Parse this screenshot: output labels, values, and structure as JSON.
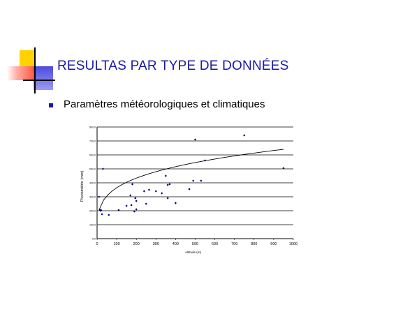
{
  "slide": {
    "title": "RESULTAS PAR TYPE DE DONNÉES",
    "bullets": [
      {
        "text": "Paramètres météorologiques et climatiques"
      }
    ]
  },
  "colors": {
    "title": "#1a1aa6",
    "bullet": "#1a1aa6",
    "points": "#00007a",
    "deco_yellow": "#ffd200",
    "deco_red": "#ff5a4a",
    "deco_blue": "#4a4ae0"
  },
  "chart_data": {
    "type": "scatter",
    "title": "",
    "xlabel": "Altitude (m)",
    "ylabel": "Pluviométrie (mm)",
    "xlim": [
      0,
      1000
    ],
    "ylim": [
      0,
      800
    ],
    "xticks": [
      0,
      100,
      200,
      300,
      400,
      500,
      600,
      700,
      800,
      900,
      1000
    ],
    "yticks": [
      0,
      100,
      200,
      300,
      400,
      500,
      600,
      700,
      800
    ],
    "ytick_labels": [
      "0,0",
      "100,0",
      "200,0",
      "300,0",
      "400,0",
      "500,0",
      "600,0",
      "700,0",
      "800,0"
    ],
    "grid": {
      "horizontal": true,
      "vertical": false
    },
    "legend": "none",
    "series": [
      {
        "points": [
          [
            10,
            300
          ],
          [
            15,
            205
          ],
          [
            18,
            200
          ],
          [
            20,
            205
          ],
          [
            25,
            175
          ],
          [
            30,
            500
          ],
          [
            60,
            170
          ],
          [
            110,
            205
          ],
          [
            150,
            235
          ],
          [
            170,
            310
          ],
          [
            175,
            240
          ],
          [
            180,
            390
          ],
          [
            190,
            195
          ],
          [
            195,
            290
          ],
          [
            200,
            210
          ],
          [
            200,
            270
          ],
          [
            240,
            340
          ],
          [
            250,
            250
          ],
          [
            265,
            350
          ],
          [
            300,
            340
          ],
          [
            330,
            325
          ],
          [
            350,
            450
          ],
          [
            360,
            290
          ],
          [
            360,
            385
          ],
          [
            370,
            390
          ],
          [
            400,
            255
          ],
          [
            470,
            355
          ],
          [
            490,
            415
          ],
          [
            500,
            710
          ],
          [
            530,
            415
          ],
          [
            550,
            560
          ],
          [
            750,
            740
          ],
          [
            950,
            505
          ]
        ]
      }
    ],
    "trendline": {
      "type": "power",
      "from": [
        10,
        205
      ],
      "to": [
        950,
        640
      ]
    }
  }
}
